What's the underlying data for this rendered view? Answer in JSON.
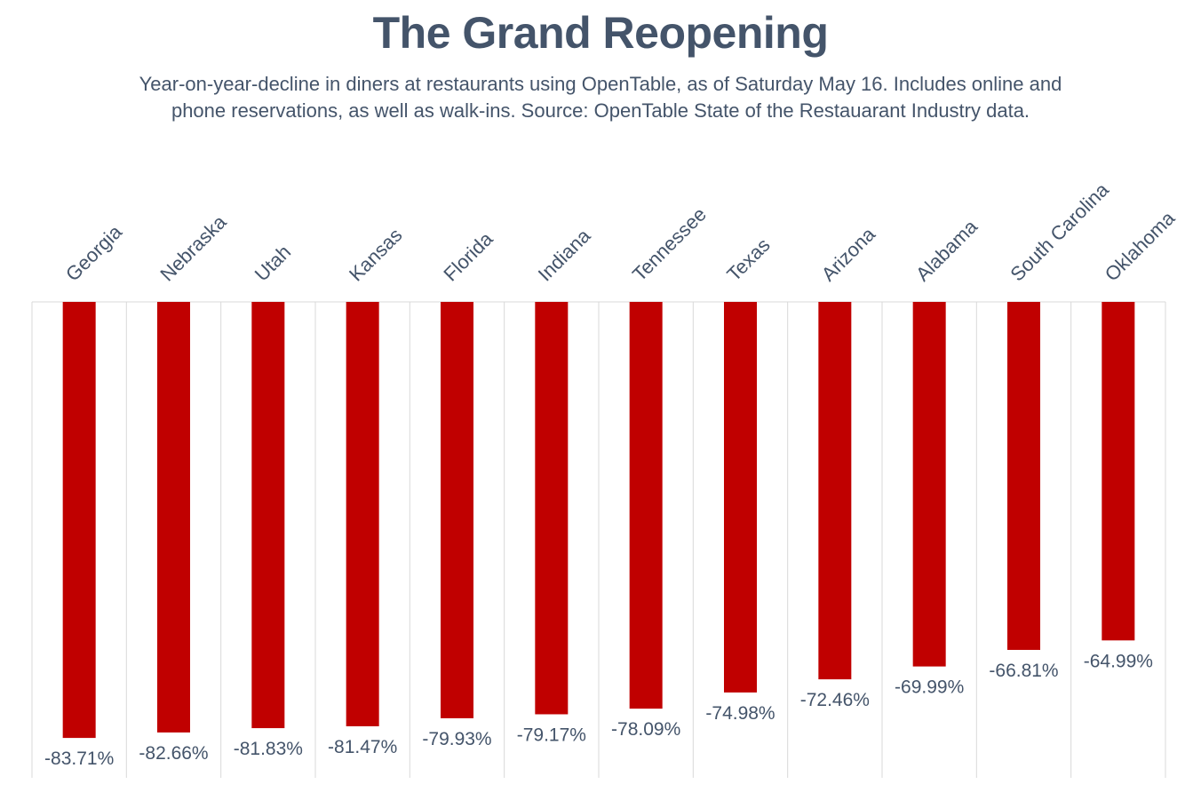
{
  "chart_data": {
    "type": "bar",
    "title": "The Grand Reopening",
    "subtitle": "Year-on-year-decline in diners at restaurants using OpenTable, as of Saturday May 16. Includes online and phone reservations, as well as walk-ins. Source: OpenTable State of the Restauarant Industry data.",
    "xlabel": "",
    "ylabel": "",
    "categories": [
      "Georgia",
      "Nebraska",
      "Utah",
      "Kansas",
      "Florida",
      "Indiana",
      "Tennessee",
      "Texas",
      "Arizona",
      "Alabama",
      "South Carolina",
      "Oklahoma"
    ],
    "values": [
      -83.71,
      -82.66,
      -81.83,
      -81.47,
      -79.93,
      -79.17,
      -78.09,
      -74.98,
      -72.46,
      -69.99,
      -66.81,
      -64.99
    ],
    "value_labels": [
      "-83.71%",
      "-82.66%",
      "-81.83%",
      "-81.47%",
      "-79.93%",
      "-79.17%",
      "-78.09%",
      "-74.98%",
      "-72.46%",
      "-69.99%",
      "-66.81%",
      "-64.99%"
    ],
    "ylim": [
      -90,
      0
    ],
    "category_axis_position": "top",
    "grid": "vertical",
    "legend": "none",
    "bar_color": "#c00000",
    "grid_color": "#d9d9d9",
    "text_color": "#44546a"
  }
}
